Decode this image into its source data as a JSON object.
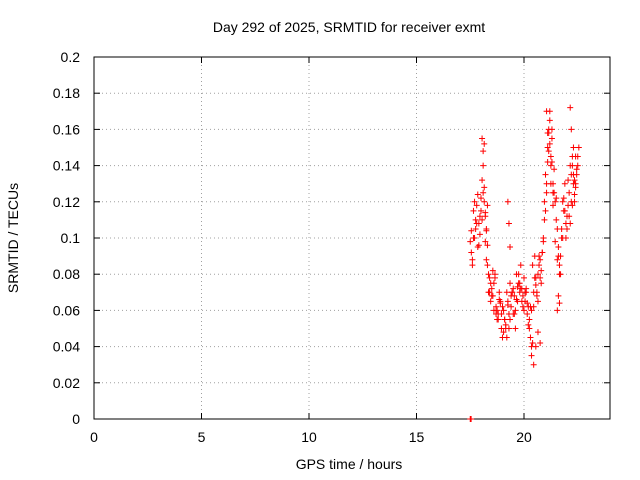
{
  "chart_data": {
    "type": "scatter",
    "title": "Day 292 of 2025, SRMTID for receiver exmt",
    "xlabel": "GPS time / hours",
    "ylabel": "SRMTID / TECUs",
    "xlim": [
      0,
      24
    ],
    "ylim": [
      0,
      0.2
    ],
    "xticks": [
      0,
      5,
      10,
      15,
      20
    ],
    "xtick_labels": [
      "0",
      "5",
      "10",
      "15",
      "20"
    ],
    "yticks": [
      0,
      0.02,
      0.04,
      0.06,
      0.08,
      0.1,
      0.12,
      0.14,
      0.16,
      0.18,
      0.2
    ],
    "ytick_labels": [
      "0",
      "0.02",
      "0.04",
      "0.06",
      "0.08",
      "0.1",
      "0.12",
      "0.14",
      "0.16",
      "0.18",
      "0.2"
    ],
    "grid": true,
    "marker": "plus",
    "color": "#ff0000",
    "series": [
      {
        "name": "SRMTID",
        "x": [
          17.5,
          17.55,
          17.6,
          17.65,
          17.7,
          17.75,
          17.8,
          17.85,
          17.9,
          17.95,
          18.0,
          18.05,
          18.1,
          18.15,
          18.2,
          18.25,
          18.3,
          18.35,
          18.4,
          18.45,
          18.5,
          18.55,
          18.6,
          18.65,
          18.7,
          18.75,
          18.8,
          18.85,
          18.9,
          18.95,
          19.0,
          19.05,
          19.1,
          19.15,
          19.2,
          19.25,
          19.3,
          19.35,
          19.4,
          19.45,
          19.5,
          19.55,
          19.6,
          19.65,
          19.7,
          19.75,
          19.8,
          19.85,
          19.9,
          19.95,
          20.0,
          20.05,
          20.1,
          20.15,
          20.2,
          20.25,
          20.3,
          20.35,
          20.4,
          20.45,
          20.5,
          20.55,
          20.6,
          20.65,
          20.7,
          20.75,
          20.8,
          20.85,
          20.9,
          20.95,
          21.0,
          21.05,
          21.1,
          21.15,
          21.2,
          21.25,
          21.3,
          21.35,
          21.4,
          21.45,
          21.5,
          21.55,
          21.6,
          21.65,
          21.7,
          21.75,
          21.8,
          21.85,
          21.9,
          21.95,
          22.0,
          22.05,
          22.1,
          22.15,
          22.2,
          22.25,
          22.3,
          22.35,
          22.4,
          22.45,
          22.5,
          22.55,
          17.55,
          17.65,
          17.75,
          17.85,
          17.95,
          18.05,
          18.15,
          18.25,
          18.35,
          18.45,
          18.55,
          18.65,
          18.75,
          18.85,
          18.95,
          19.05,
          19.15,
          19.25,
          19.35,
          19.45,
          19.55,
          19.65,
          19.75,
          19.85,
          19.95,
          20.05,
          20.15,
          20.25,
          20.35,
          20.45,
          20.55,
          20.65,
          20.75,
          20.85,
          20.95,
          21.05,
          21.15,
          21.25,
          21.35,
          21.45,
          21.55,
          21.65,
          21.75,
          21.85,
          21.95,
          22.05,
          22.15,
          22.25,
          22.35,
          22.45,
          17.6,
          17.8,
          18.0,
          18.2,
          18.4,
          18.6,
          18.8,
          19.0,
          19.2,
          19.4,
          19.6,
          19.8,
          20.0,
          20.2,
          20.4,
          20.6,
          20.8,
          21.0,
          21.2,
          21.4,
          21.6,
          21.8,
          22.0,
          22.2,
          22.4,
          17.7,
          17.9,
          18.1,
          18.3,
          18.5,
          18.7,
          18.9,
          19.1,
          19.3,
          19.5,
          19.7,
          19.9,
          20.1,
          20.3,
          20.5,
          20.7,
          20.9,
          21.1,
          21.3,
          21.5,
          21.7,
          21.9,
          22.1,
          22.3,
          22.5,
          18.05,
          18.1,
          18.15,
          18.2,
          18.25,
          18.3,
          21.05,
          21.1,
          21.15,
          21.2,
          21.25,
          21.3,
          21.35,
          22.15,
          22.2,
          22.25,
          22.3,
          22.35,
          22.4,
          19.25,
          19.3,
          19.35,
          20.35,
          20.45,
          20.55,
          20.65,
          20.75,
          21.55,
          21.6,
          21.65,
          17.5,
          17.52,
          17.54
        ],
        "y": [
          0.098,
          0.104,
          0.088,
          0.115,
          0.12,
          0.11,
          0.118,
          0.124,
          0.108,
          0.112,
          0.115,
          0.132,
          0.14,
          0.152,
          0.098,
          0.088,
          0.085,
          0.07,
          0.078,
          0.065,
          0.072,
          0.068,
          0.075,
          0.08,
          0.062,
          0.055,
          0.058,
          0.07,
          0.065,
          0.05,
          0.045,
          0.06,
          0.055,
          0.05,
          0.07,
          0.065,
          0.058,
          0.075,
          0.062,
          0.07,
          0.072,
          0.068,
          0.06,
          0.08,
          0.065,
          0.075,
          0.07,
          0.085,
          0.072,
          0.068,
          0.078,
          0.065,
          0.07,
          0.058,
          0.062,
          0.055,
          0.045,
          0.06,
          0.085,
          0.07,
          0.09,
          0.078,
          0.068,
          0.08,
          0.085,
          0.088,
          0.075,
          0.092,
          0.1,
          0.12,
          0.135,
          0.125,
          0.15,
          0.158,
          0.165,
          0.14,
          0.155,
          0.13,
          0.125,
          0.12,
          0.11,
          0.105,
          0.095,
          0.085,
          0.09,
          0.1,
          0.12,
          0.115,
          0.13,
          0.108,
          0.112,
          0.118,
          0.125,
          0.14,
          0.135,
          0.145,
          0.13,
          0.12,
          0.128,
          0.135,
          0.14,
          0.15,
          0.092,
          0.1,
          0.105,
          0.095,
          0.102,
          0.11,
          0.12,
          0.105,
          0.08,
          0.075,
          0.082,
          0.078,
          0.06,
          0.066,
          0.058,
          0.048,
          0.052,
          0.063,
          0.055,
          0.07,
          0.058,
          0.066,
          0.08,
          0.072,
          0.062,
          0.07,
          0.064,
          0.05,
          0.04,
          0.062,
          0.074,
          0.065,
          0.078,
          0.092,
          0.11,
          0.13,
          0.16,
          0.145,
          0.118,
          0.098,
          0.088,
          0.08,
          0.105,
          0.122,
          0.1,
          0.132,
          0.108,
          0.118,
          0.124,
          0.138,
          0.085,
          0.108,
          0.122,
          0.112,
          0.07,
          0.06,
          0.055,
          0.062,
          0.045,
          0.068,
          0.05,
          0.075,
          0.06,
          0.052,
          0.042,
          0.07,
          0.082,
          0.115,
          0.17,
          0.138,
          0.09,
          0.1,
          0.105,
          0.12,
          0.13,
          0.1,
          0.096,
          0.125,
          0.118,
          0.068,
          0.058,
          0.064,
          0.055,
          0.05,
          0.058,
          0.073,
          0.065,
          0.072,
          0.062,
          0.078,
          0.09,
          0.098,
          0.142,
          0.16,
          0.122,
          0.08,
          0.115,
          0.112,
          0.135,
          0.145,
          0.155,
          0.148,
          0.128,
          0.114,
          0.104,
          0.096,
          0.17,
          0.158,
          0.148,
          0.152,
          0.13,
          0.142,
          0.125,
          0.172,
          0.16,
          0.14,
          0.15,
          0.132,
          0.145,
          0.12,
          0.108,
          0.095,
          0.035,
          0.03,
          0.04,
          0.048,
          0.042,
          0.06,
          0.068,
          0.064,
          0.0,
          0.0,
          0.0
        ]
      }
    ]
  }
}
